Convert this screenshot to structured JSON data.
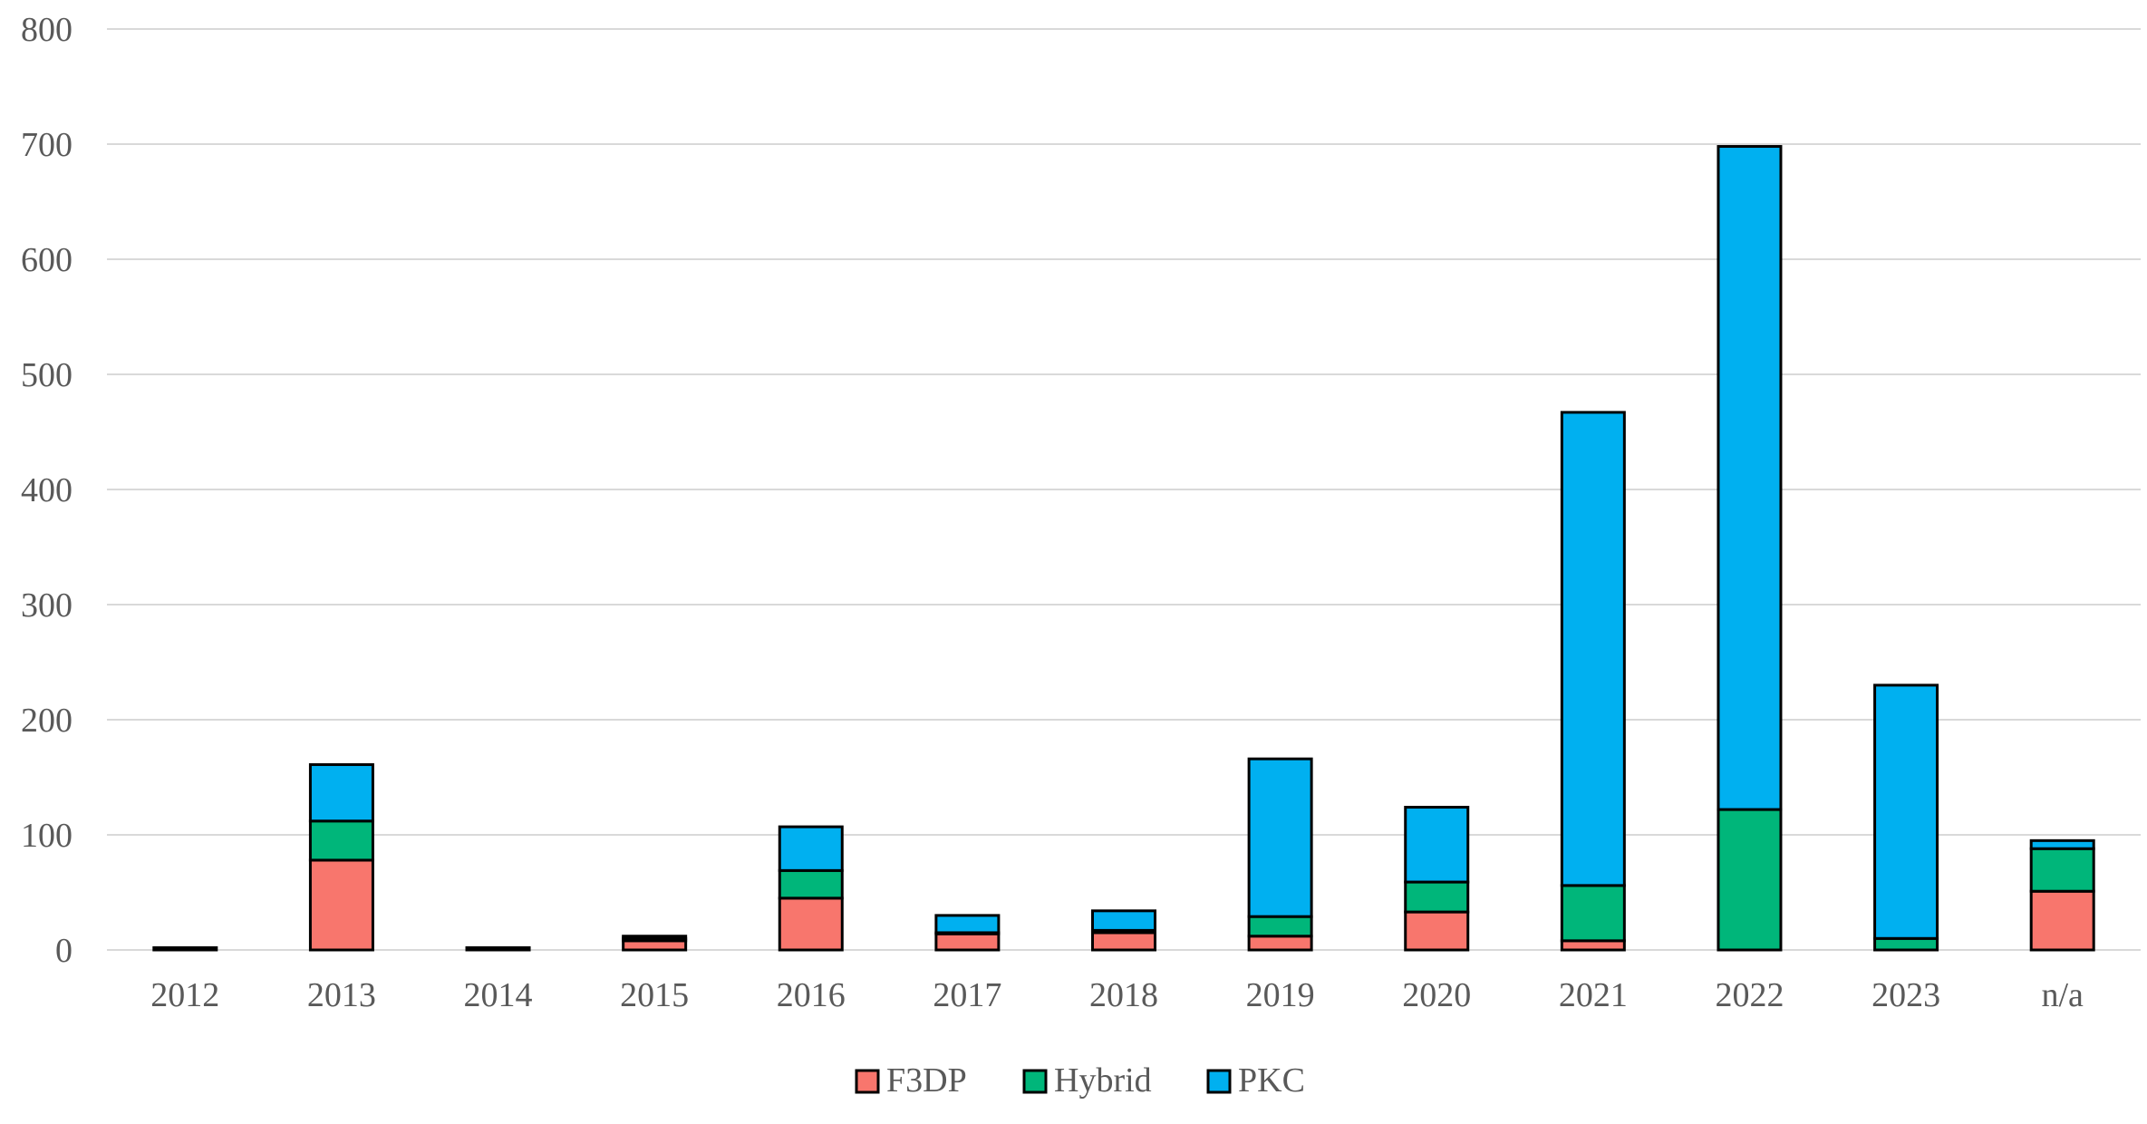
{
  "chart_data": {
    "type": "bar",
    "stacked": true,
    "title": "",
    "xlabel": "",
    "ylabel": "",
    "ylim": [
      0,
      800
    ],
    "yticks": [
      0,
      100,
      200,
      300,
      400,
      500,
      600,
      700,
      800
    ],
    "grid": true,
    "legend_position": "bottom",
    "categories": [
      "2012",
      "2013",
      "2014",
      "2015",
      "2016",
      "2017",
      "2018",
      "2019",
      "2020",
      "2021",
      "2022",
      "2023",
      "n/a"
    ],
    "series": [
      {
        "name": "F3DP",
        "color": "#f8766d",
        "values": [
          2,
          78,
          2,
          8,
          45,
          14,
          15,
          12,
          33,
          8,
          0,
          0,
          51
        ]
      },
      {
        "name": "Hybrid",
        "color": "#00b67a",
        "values": [
          0,
          34,
          0,
          2,
          24,
          1,
          2,
          17,
          26,
          48,
          122,
          10,
          37
        ]
      },
      {
        "name": "PKC",
        "color": "#00b0f0",
        "values": [
          0,
          49,
          0,
          2,
          38,
          15,
          17,
          137,
          65,
          411,
          576,
          220,
          7
        ]
      }
    ]
  }
}
